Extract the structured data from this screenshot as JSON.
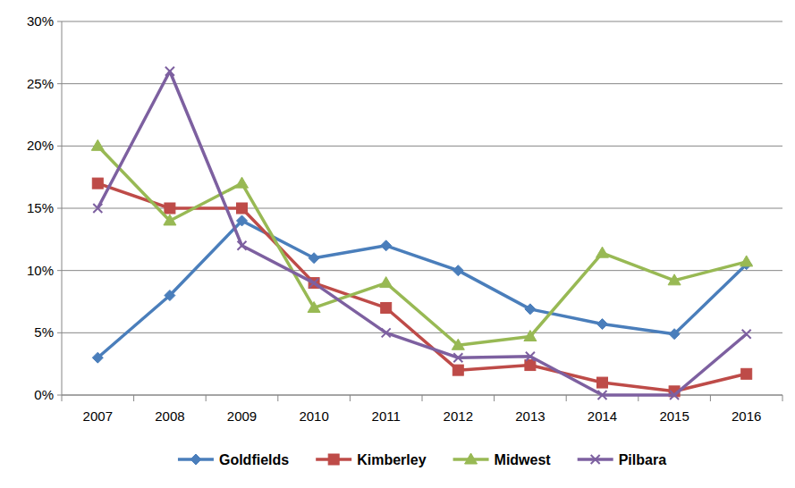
{
  "chart_data": {
    "type": "line",
    "categories": [
      "2007",
      "2008",
      "2009",
      "2010",
      "2011",
      "2012",
      "2013",
      "2014",
      "2015",
      "2016"
    ],
    "series": [
      {
        "name": "Goldfields",
        "color": "#4a7ebb",
        "marker": "diamond",
        "values": [
          3,
          8,
          14,
          11,
          12,
          10,
          6.9,
          5.7,
          4.9,
          10.5
        ]
      },
      {
        "name": "Kimberley",
        "color": "#be4b48",
        "marker": "square",
        "values": [
          17,
          15,
          15,
          9,
          7,
          2,
          2.4,
          1,
          0.3,
          1.7
        ]
      },
      {
        "name": "Midwest",
        "color": "#98b954",
        "marker": "triangle",
        "values": [
          20,
          14,
          17,
          7,
          9,
          4,
          4.7,
          11.4,
          9.2,
          10.7
        ]
      },
      {
        "name": "Pilbara",
        "color": "#7d60a0",
        "marker": "x",
        "values": [
          15,
          26,
          12,
          9,
          5,
          3,
          3.1,
          0,
          0,
          4.9
        ]
      }
    ],
    "ylim": [
      0,
      30
    ],
    "yticks": [
      {
        "value": 0,
        "label": "0%"
      },
      {
        "value": 5,
        "label": "5%"
      },
      {
        "value": 10,
        "label": "10%"
      },
      {
        "value": 15,
        "label": "15%"
      },
      {
        "value": 20,
        "label": "20%"
      },
      {
        "value": 25,
        "label": "25%"
      },
      {
        "value": 30,
        "label": "30%"
      }
    ],
    "grid": true,
    "legend": "bottom"
  }
}
